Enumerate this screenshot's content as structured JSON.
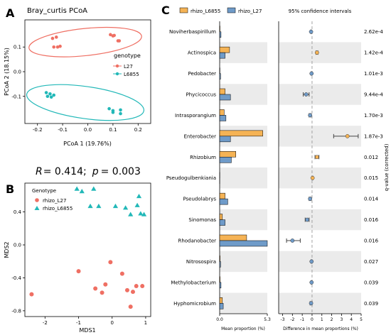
{
  "panel_letters": {
    "a": "A",
    "b": "B",
    "c": "C"
  },
  "colors": {
    "l27": "#ef6f63",
    "l6855": "#22b8b8",
    "orange": "#f5b355",
    "blue": "#6f9bc9",
    "band": "#ebebeb",
    "axis": "#000000"
  },
  "chart_data": [
    {
      "id": "A",
      "type": "scatter",
      "title": "Bray_curtis PCoA",
      "xlabel": "PCoA 1 (19.76%)",
      "ylabel": "PCoA 2 (18.15%)",
      "xticks": [
        -0.2,
        -0.1,
        0.0,
        0.1,
        0.2
      ],
      "yticks": [
        -0.1,
        0.0,
        0.1
      ],
      "xtick_labels": [
        "-0.2",
        "-0.1",
        "0.0",
        "0.1",
        "0.2"
      ],
      "ytick_labels": [
        "-0.1",
        "0.0",
        "0.1"
      ],
      "legend": {
        "title": "genotype",
        "position": "right"
      },
      "series": [
        {
          "name": "L27",
          "points": [
            [
              -0.14,
              0.135
            ],
            [
              -0.125,
              0.14
            ],
            [
              -0.135,
              0.1
            ],
            [
              -0.12,
              0.1
            ],
            [
              -0.11,
              0.103
            ],
            [
              0.09,
              0.15
            ],
            [
              0.1,
              0.145
            ],
            [
              0.105,
              0.147
            ],
            [
              0.12,
              0.125
            ],
            [
              0.125,
              0.125
            ]
          ]
        },
        {
          "name": "L6855",
          "points": [
            [
              -0.165,
              -0.085
            ],
            [
              -0.15,
              -0.09
            ],
            [
              -0.16,
              -0.1
            ],
            [
              -0.145,
              -0.103
            ],
            [
              -0.135,
              -0.095
            ],
            [
              0.085,
              -0.15
            ],
            [
              0.1,
              -0.158
            ],
            [
              0.1,
              -0.165
            ],
            [
              0.13,
              -0.155
            ],
            [
              0.13,
              -0.17
            ]
          ]
        }
      ],
      "ellipses": [
        {
          "series": "L27",
          "cx": -0.01,
          "cy": 0.12,
          "rx": 0.225,
          "ry": 0.055,
          "angle_deg": -6
        },
        {
          "series": "L6855",
          "cx": -0.01,
          "cy": -0.125,
          "rx": 0.235,
          "ry": 0.065,
          "angle_deg": 8
        }
      ],
      "xlim": [
        -0.25,
        0.25
      ],
      "ylim": [
        -0.21,
        0.21
      ]
    },
    {
      "id": "B",
      "type": "scatter",
      "annotation": {
        "r_label": "R",
        "r_text": "= 0.414;",
        "p_label": "p",
        "p_text": "= 0.003"
      },
      "xlabel": "MDS1",
      "ylabel": "MDS2",
      "xticks": [
        -2,
        -1,
        0,
        1
      ],
      "yticks": [
        -0.8,
        -0.4,
        0.0,
        0.4
      ],
      "xtick_labels": [
        "-2",
        "-1",
        "0",
        "1"
      ],
      "ytick_labels": [
        "-0.8",
        "-0.4",
        "0.0",
        "0.4"
      ],
      "legend": {
        "title": "Genotype",
        "position": "top-left"
      },
      "series": [
        {
          "name": "rhizo_L27",
          "marker": "circle",
          "points": [
            [
              -2.4,
              -0.6
            ],
            [
              -1.0,
              -0.32
            ],
            [
              -0.5,
              -0.53
            ],
            [
              -0.3,
              -0.58
            ],
            [
              -0.2,
              -0.48
            ],
            [
              -0.05,
              -0.21
            ],
            [
              0.3,
              -0.35
            ],
            [
              0.45,
              -0.55
            ],
            [
              0.55,
              -0.75
            ],
            [
              0.62,
              -0.57
            ],
            [
              0.72,
              -0.5
            ],
            [
              0.9,
              -0.5
            ]
          ]
        },
        {
          "name": "rhizo_L6855",
          "marker": "triangle",
          "points": [
            [
              -1.05,
              0.68
            ],
            [
              -0.9,
              0.65
            ],
            [
              -0.55,
              0.68
            ],
            [
              -0.65,
              0.47
            ],
            [
              -0.4,
              0.47
            ],
            [
              0.1,
              0.47
            ],
            [
              0.4,
              0.45
            ],
            [
              0.55,
              0.37
            ],
            [
              0.75,
              0.48
            ],
            [
              0.85,
              0.38
            ],
            [
              0.95,
              0.37
            ],
            [
              0.8,
              0.59
            ]
          ]
        }
      ],
      "xlim": [
        -2.6,
        1.15
      ],
      "ylim": [
        -0.87,
        0.75
      ]
    },
    {
      "id": "C",
      "type": "bar",
      "legend": [
        "rhizo_L6855",
        "rhizo_L27"
      ],
      "right_title": "95% confidence intervals",
      "left_xlabel": "Mean proportion (%)",
      "right_xlabel": "Difference in mean proportions (%)",
      "qlabel": "q-value (corrected)",
      "left_xticks": [
        "0.0",
        "5.3"
      ],
      "left_xlim": [
        0,
        5.3
      ],
      "right_xticks": [
        -3,
        -2,
        -1,
        0,
        1,
        2,
        3,
        4,
        5
      ],
      "right_xlim": [
        -3.4,
        5.0
      ],
      "categories": [
        "Noviherbaspirillum",
        "Actinospica",
        "Pedobacter",
        "Phycicoccus",
        "Intrasporangium",
        "Enterobacter",
        "Rhizobium",
        "Pseudogulbenkiania",
        "Pseudolabrys",
        "Sinomonas",
        "Rhodanobacter",
        "Nitrosospira",
        "Methylobacterium",
        "Hyphomicrobium"
      ],
      "series": [
        {
          "name": "rhizo_L6855",
          "values": [
            0.04,
            1.1,
            0.03,
            0.6,
            0.5,
            4.8,
            1.8,
            0.02,
            0.6,
            0.3,
            3.0,
            0.05,
            0.05,
            0.3
          ]
        },
        {
          "name": "rhizo_L27",
          "values": [
            0.15,
            0.6,
            0.1,
            1.2,
            0.7,
            1.2,
            1.3,
            0.01,
            0.9,
            0.6,
            5.3,
            0.1,
            0.15,
            0.4
          ]
        }
      ],
      "differences": [
        {
          "mean": -0.1,
          "lo": -0.15,
          "hi": -0.05
        },
        {
          "mean": 0.5,
          "lo": 0.4,
          "hi": 0.6
        },
        {
          "mean": -0.05,
          "lo": -0.1,
          "hi": 0.0
        },
        {
          "mean": -0.6,
          "lo": -0.9,
          "hi": -0.3
        },
        {
          "mean": -0.2,
          "lo": -0.3,
          "hi": -0.1
        },
        {
          "mean": 3.6,
          "lo": 2.2,
          "hi": 4.7
        },
        {
          "mean": 0.5,
          "lo": 0.3,
          "hi": 0.7
        },
        {
          "mean": 0.05,
          "lo": 0.0,
          "hi": 0.1
        },
        {
          "mean": -0.2,
          "lo": -0.3,
          "hi": -0.1
        },
        {
          "mean": -0.5,
          "lo": -0.7,
          "hi": -0.3
        },
        {
          "mean": -2.0,
          "lo": -2.6,
          "hi": -1.2
        },
        {
          "mean": -0.05,
          "lo": -0.1,
          "hi": 0.0
        },
        {
          "mean": -0.05,
          "lo": -0.1,
          "hi": 0.0
        },
        {
          "mean": -0.1,
          "lo": -0.2,
          "hi": 0.0
        }
      ],
      "diff_colors": [
        "blue",
        "orange",
        "blue",
        "blue",
        "blue",
        "orange",
        "orange",
        "orange",
        "blue",
        "blue",
        "blue",
        "blue",
        "blue",
        "blue"
      ],
      "qvalues": [
        "2.62e-4",
        "1.42e-4",
        "1.01e-3",
        "9.44e-4",
        "1.70e-3",
        "1.87e-3",
        "0.012",
        "0.015",
        "0.014",
        "0.016",
        "0.016",
        "0.027",
        "0.039",
        "0.039"
      ]
    }
  ]
}
